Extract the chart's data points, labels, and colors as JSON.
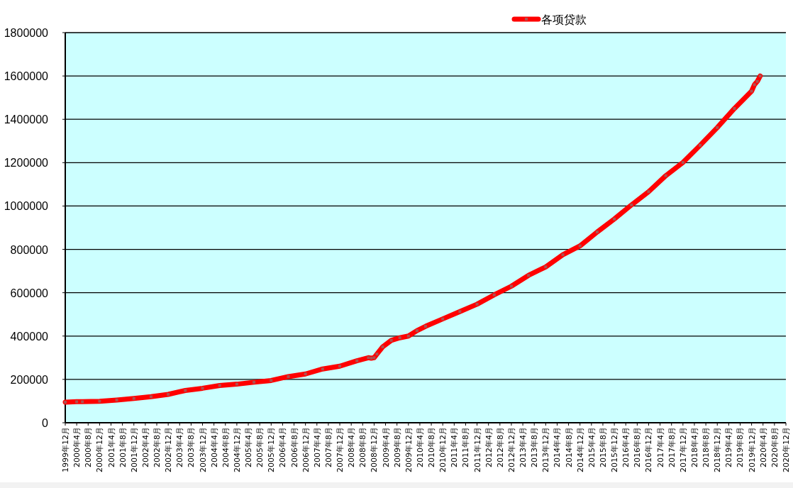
{
  "chart_data": {
    "type": "line",
    "legend": "top",
    "grid": "y",
    "marker": "square",
    "line_style": "solid",
    "series": [
      {
        "name": "各项贷款",
        "color": "#ff0000",
        "x": [
          "1999-12",
          "2000-04",
          "2000-06",
          "2000-12",
          "2001-06",
          "2001-12",
          "2002-06",
          "2002-12",
          "2003-06",
          "2003-12",
          "2004-06",
          "2004-12",
          "2005-06",
          "2005-12",
          "2006-06",
          "2006-12",
          "2007-06",
          "2007-12",
          "2008-06",
          "2008-10",
          "2008-11",
          "2008-12",
          "2009-01",
          "2009-03",
          "2009-06",
          "2009-09",
          "2009-12",
          "2010-03",
          "2010-06",
          "2010-12",
          "2011-06",
          "2011-12",
          "2012-06",
          "2012-12",
          "2013-06",
          "2013-12",
          "2014-06",
          "2014-12",
          "2015-06",
          "2015-12",
          "2016-06",
          "2016-12",
          "2017-06",
          "2017-12",
          "2018-06",
          "2018-12",
          "2019-06",
          "2019-12",
          "2020-01",
          "2020-02",
          "2020-03"
        ],
        "values": [
          95000,
          97000,
          97000,
          99000,
          105000,
          112000,
          120000,
          131000,
          149000,
          159000,
          172000,
          178000,
          187000,
          195000,
          213000,
          225000,
          248000,
          261000,
          286000,
          300000,
          298000,
          300000,
          317000,
          350000,
          380000,
          392000,
          400000,
          425000,
          445000,
          479000,
          513000,
          547000,
          590000,
          630000,
          680000,
          719000,
          775000,
          816000,
          880000,
          940000,
          1005000,
          1066000,
          1140000,
          1201000,
          1280000,
          1362000,
          1450000,
          1530000,
          1560000,
          1575000,
          1600000
        ]
      }
    ],
    "ylim": [
      0,
      1800000
    ],
    "yticks": [
      0,
      200000,
      400000,
      600000,
      800000,
      1000000,
      1200000,
      1400000,
      1600000,
      1800000
    ],
    "xlim": [
      "1999-12",
      "2020-12"
    ],
    "xticks": [
      {
        "value": "1999-12",
        "label": "1999年12月"
      },
      {
        "value": "2000-04",
        "label": "2000年4月"
      },
      {
        "value": "2000-08",
        "label": "2000年8月"
      },
      {
        "value": "2000-12",
        "label": "2000年12月"
      },
      {
        "value": "2001-04",
        "label": "2001年4月"
      },
      {
        "value": "2001-08",
        "label": "2001年8月"
      },
      {
        "value": "2001-12",
        "label": "2001年12月"
      },
      {
        "value": "2002-04",
        "label": "2002年4月"
      },
      {
        "value": "2002-08",
        "label": "2002年8月"
      },
      {
        "value": "2002-12",
        "label": "2002年12月"
      },
      {
        "value": "2003-04",
        "label": "2003年4月"
      },
      {
        "value": "2003-08",
        "label": "2003年8月"
      },
      {
        "value": "2003-12",
        "label": "2003年12月"
      },
      {
        "value": "2004-04",
        "label": "2004年4月"
      },
      {
        "value": "2004-08",
        "label": "2004年8月"
      },
      {
        "value": "2004-12",
        "label": "2004年12月"
      },
      {
        "value": "2005-04",
        "label": "2005年4月"
      },
      {
        "value": "2005-08",
        "label": "2005年8月"
      },
      {
        "value": "2005-12",
        "label": "2005年12月"
      },
      {
        "value": "2006-04",
        "label": "2006年4月"
      },
      {
        "value": "2006-08",
        "label": "2006年8月"
      },
      {
        "value": "2006-12",
        "label": "2006年12月"
      },
      {
        "value": "2007-04",
        "label": "2007年4月"
      },
      {
        "value": "2007-08",
        "label": "2007年8月"
      },
      {
        "value": "2007-12",
        "label": "2007年12月"
      },
      {
        "value": "2008-04",
        "label": "2008年4月"
      },
      {
        "value": "2008-08",
        "label": "2008年8月"
      },
      {
        "value": "2008-12",
        "label": "2008年12月"
      },
      {
        "value": "2009-04",
        "label": "2009年4月"
      },
      {
        "value": "2009-08",
        "label": "2009年8月"
      },
      {
        "value": "2009-12",
        "label": "2009年12月"
      },
      {
        "value": "2010-04",
        "label": "2010年4月"
      },
      {
        "value": "2010-08",
        "label": "2010年8月"
      },
      {
        "value": "2010-12",
        "label": "2010年12月"
      },
      {
        "value": "2011-04",
        "label": "2011年4月"
      },
      {
        "value": "2011-08",
        "label": "2011年8月"
      },
      {
        "value": "2011-12",
        "label": "2011年12月"
      },
      {
        "value": "2012-04",
        "label": "2012年4月"
      },
      {
        "value": "2012-08",
        "label": "2012年8月"
      },
      {
        "value": "2012-12",
        "label": "2012年12月"
      },
      {
        "value": "2013-04",
        "label": "2013年4月"
      },
      {
        "value": "2013-08",
        "label": "2013年8月"
      },
      {
        "value": "2013-12",
        "label": "2013年12月"
      },
      {
        "value": "2014-04",
        "label": "2014年4月"
      },
      {
        "value": "2014-08",
        "label": "2014年8月"
      },
      {
        "value": "2014-12",
        "label": "2014年12月"
      },
      {
        "value": "2015-04",
        "label": "2015年4月"
      },
      {
        "value": "2015-08",
        "label": "2015年8月"
      },
      {
        "value": "2015-12",
        "label": "2015年12月"
      },
      {
        "value": "2016-04",
        "label": "2016年4月"
      },
      {
        "value": "2016-08",
        "label": "2016年8月"
      },
      {
        "value": "2016-12",
        "label": "2016年12月"
      },
      {
        "value": "2017-04",
        "label": "2017年4月"
      },
      {
        "value": "2017-08",
        "label": "2017年8月"
      },
      {
        "value": "2017-12",
        "label": "2017年12月"
      },
      {
        "value": "2018-04",
        "label": "2018年4月"
      },
      {
        "value": "2018-08",
        "label": "2018年8月"
      },
      {
        "value": "2018-12",
        "label": "2018年12月"
      },
      {
        "value": "2019-04",
        "label": "2019年4月"
      },
      {
        "value": "2019-08",
        "label": "2019年8月"
      },
      {
        "value": "2019-12",
        "label": "2019年12月"
      },
      {
        "value": "2020-04",
        "label": "2020年4月"
      },
      {
        "value": "2020-08",
        "label": "2020年8月"
      },
      {
        "value": "2020-12",
        "label": "2020年12月"
      }
    ]
  }
}
